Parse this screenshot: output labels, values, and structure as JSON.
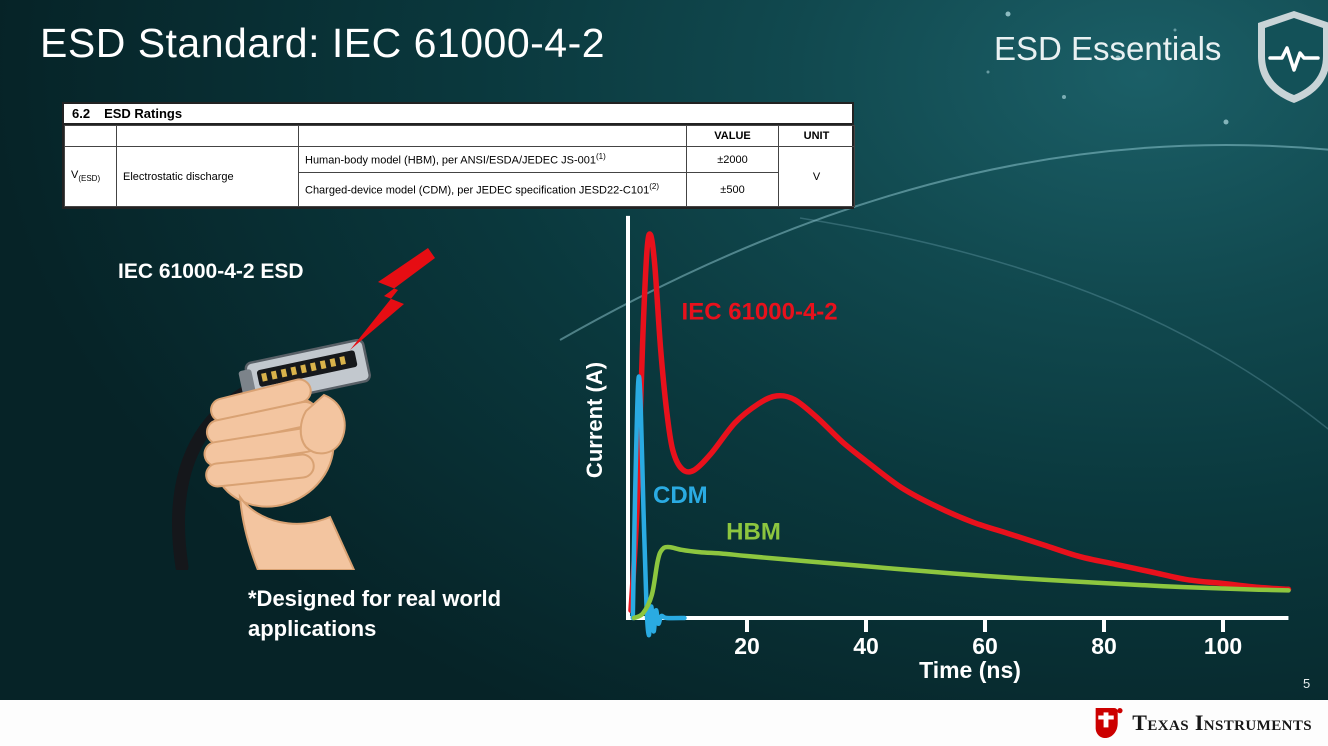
{
  "slide": {
    "title": "ESD Standard: IEC 61000-4-2",
    "series_title": "ESD Essentials",
    "page_number": "5",
    "footer_logo_text": "Texas Instruments"
  },
  "colors": {
    "iec_red": "#e8111c",
    "cdm_blue": "#2aabe2",
    "hbm_green": "#8dc63f",
    "brand_red": "#cc0000",
    "background_teal": "#0a383d"
  },
  "ratings_table": {
    "section_number": "6.2",
    "section_title": "ESD Ratings",
    "header": {
      "value": "VALUE",
      "unit": "UNIT"
    },
    "symbol": "V",
    "symbol_sub": "(ESD)",
    "parameter": "Electrostatic discharge",
    "rows": [
      {
        "description": "Human-body model (HBM), per ANSI/ESDA/JEDEC JS-001",
        "superscript": "(1)",
        "value": "±2000"
      },
      {
        "description": "Charged-device model (CDM), per JEDEC specification JESD22-C101",
        "superscript": "(2)",
        "value": "±500"
      }
    ],
    "unit": "V"
  },
  "left_panel": {
    "caption": "IEC 61000-4-2 ESD",
    "footnote_line1": "*Designed for real world",
    "footnote_line2": "applications"
  },
  "chart_data": {
    "type": "line",
    "title": "",
    "xlabel": "Time (ns)",
    "ylabel": "Current (A)",
    "xlim": [
      0,
      111
    ],
    "ylim": [
      -0.06,
      1.05
    ],
    "x_ticks": [
      20,
      40,
      60,
      80,
      100
    ],
    "grid": false,
    "legend": "inline-labels",
    "axis_color": "#ffffff",
    "series": [
      {
        "name": "IEC 61000-4-2",
        "color": "#e8111c",
        "line_width": 5.5,
        "label_pos": [
          9,
          0.78
        ],
        "points": [
          [
            0.5,
            0.02
          ],
          [
            1.5,
            0.28
          ],
          [
            2.5,
            0.74
          ],
          [
            3.2,
            0.96
          ],
          [
            3.8,
            1.0
          ],
          [
            4.5,
            0.92
          ],
          [
            5.5,
            0.7
          ],
          [
            6.5,
            0.54
          ],
          [
            7.5,
            0.44
          ],
          [
            9,
            0.39
          ],
          [
            11,
            0.385
          ],
          [
            14,
            0.43
          ],
          [
            18,
            0.51
          ],
          [
            22,
            0.56
          ],
          [
            25,
            0.58
          ],
          [
            28,
            0.57
          ],
          [
            32,
            0.52
          ],
          [
            36,
            0.46
          ],
          [
            40,
            0.41
          ],
          [
            46,
            0.34
          ],
          [
            52,
            0.29
          ],
          [
            58,
            0.25
          ],
          [
            64,
            0.22
          ],
          [
            70,
            0.19
          ],
          [
            76,
            0.16
          ],
          [
            82,
            0.14
          ],
          [
            88,
            0.12
          ],
          [
            94,
            0.1
          ],
          [
            100,
            0.09
          ],
          [
            106,
            0.08
          ],
          [
            111,
            0.075
          ]
        ]
      },
      {
        "name": "CDM",
        "color": "#2aabe2",
        "line_width": 4.5,
        "label_pos": [
          4.2,
          0.3
        ],
        "points": [
          [
            0.8,
            0.0
          ],
          [
            1.2,
            0.32
          ],
          [
            1.7,
            0.61
          ],
          [
            2.1,
            0.57
          ],
          [
            2.6,
            0.28
          ],
          [
            3.1,
            0.04
          ],
          [
            3.5,
            -0.045
          ],
          [
            3.9,
            0.03
          ],
          [
            4.3,
            -0.035
          ],
          [
            4.7,
            0.02
          ],
          [
            5.1,
            -0.015
          ],
          [
            5.6,
            0.005
          ],
          [
            6.5,
            0.0
          ],
          [
            9.5,
            0.0
          ]
        ]
      },
      {
        "name": "HBM",
        "color": "#8dc63f",
        "line_width": 4.5,
        "label_pos": [
          16.5,
          0.205
        ],
        "points": [
          [
            1,
            0.0
          ],
          [
            2.5,
            0.012
          ],
          [
            4,
            0.06
          ],
          [
            5,
            0.15
          ],
          [
            5.8,
            0.18
          ],
          [
            7,
            0.185
          ],
          [
            9,
            0.178
          ],
          [
            12,
            0.172
          ],
          [
            16,
            0.168
          ],
          [
            20,
            0.162
          ],
          [
            30,
            0.148
          ],
          [
            40,
            0.135
          ],
          [
            50,
            0.122
          ],
          [
            60,
            0.11
          ],
          [
            70,
            0.1
          ],
          [
            80,
            0.091
          ],
          [
            90,
            0.083
          ],
          [
            100,
            0.077
          ],
          [
            106,
            0.074
          ],
          [
            111,
            0.072
          ]
        ]
      }
    ]
  }
}
